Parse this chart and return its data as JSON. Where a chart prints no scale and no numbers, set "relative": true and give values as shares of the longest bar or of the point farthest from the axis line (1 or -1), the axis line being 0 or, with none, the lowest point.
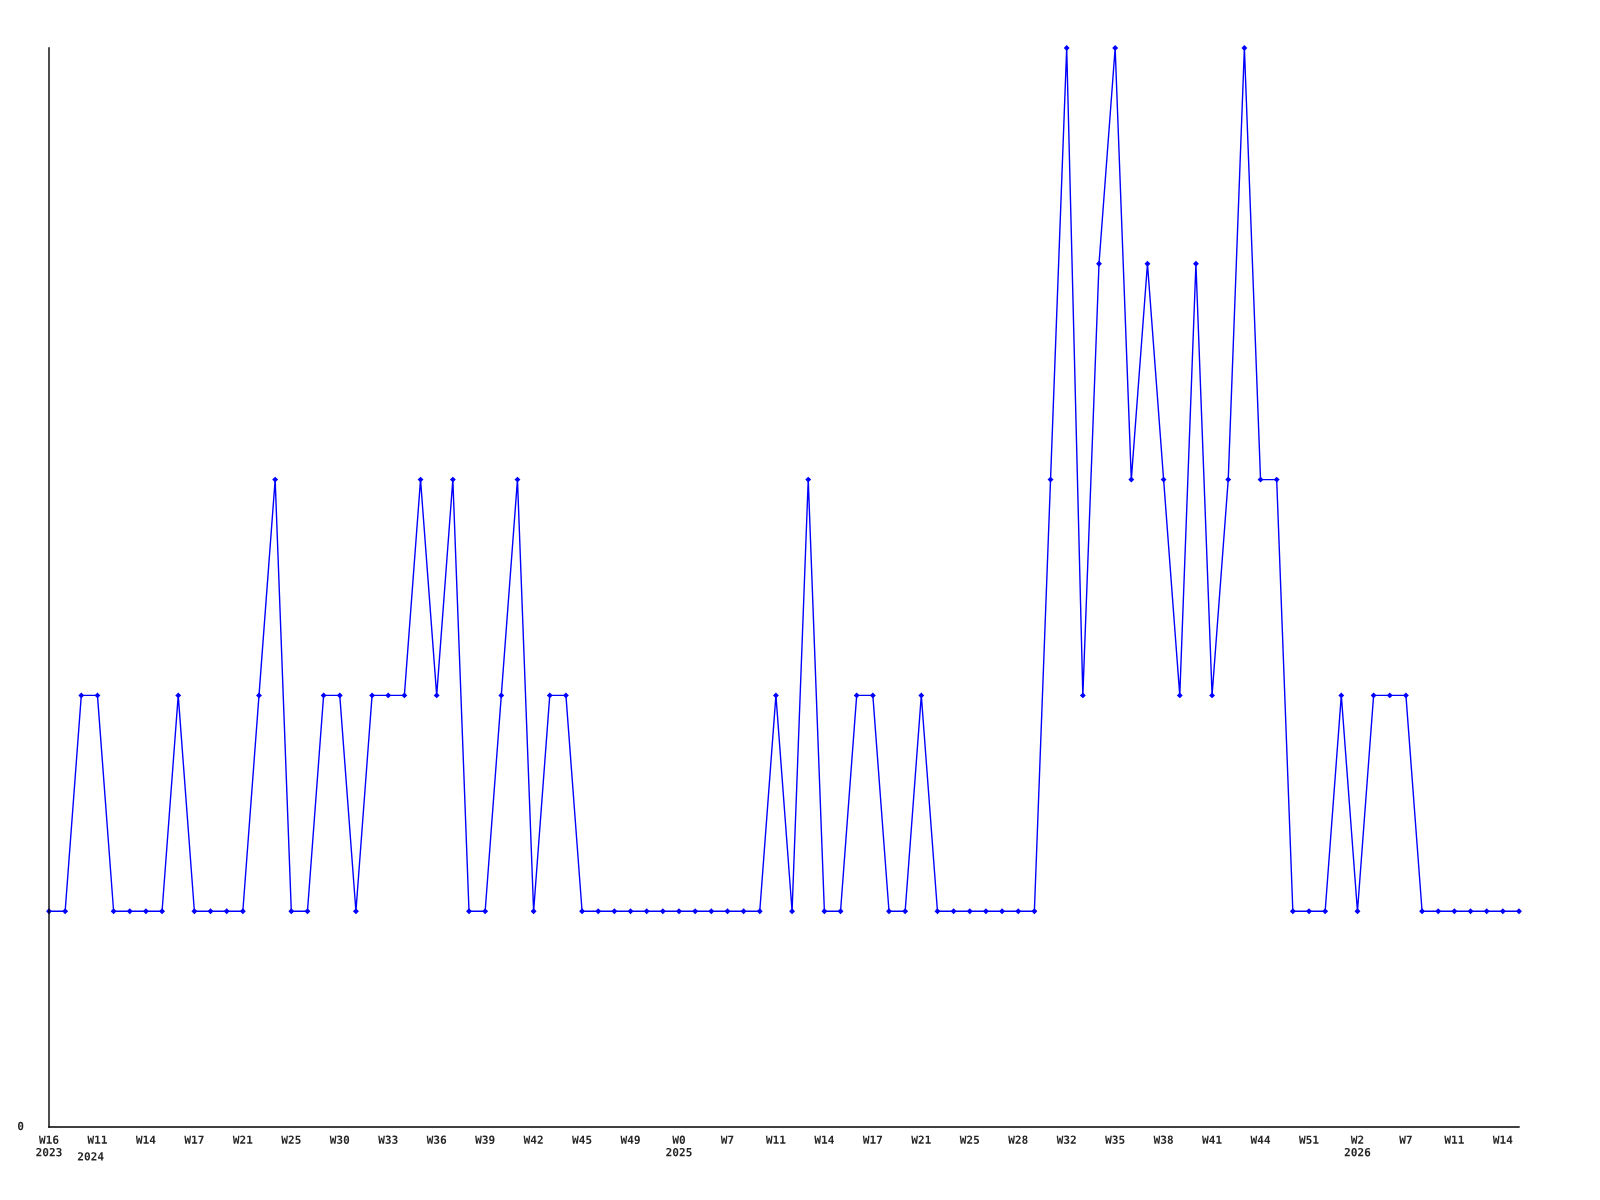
{
  "chart_data": {
    "type": "line",
    "relative": true,
    "marker": "diamond",
    "line_style": "solid",
    "grid": false,
    "categories": [
      "W16\n2023",
      null,
      null,
      "W11",
      null,
      null,
      "W14",
      null,
      null,
      "W17",
      null,
      null,
      "W21",
      null,
      null,
      "W25",
      null,
      null,
      "W30",
      null,
      null,
      "W33",
      null,
      null,
      "W36",
      null,
      null,
      "W39",
      null,
      null,
      "W42",
      null,
      null,
      "W45",
      null,
      null,
      "W49",
      null,
      null,
      "W0\n2025",
      null,
      null,
      "W7",
      null,
      null,
      "W11",
      null,
      null,
      "W14",
      null,
      null,
      "W17",
      null,
      null,
      "W21",
      null,
      null,
      "W25",
      null,
      null,
      "W28",
      null,
      null,
      "W32",
      null,
      null,
      "W35",
      null,
      null,
      "W38",
      null,
      null,
      "W41",
      null,
      null,
      "W44",
      null,
      null,
      "W51",
      null,
      null,
      "W2\n2026",
      null,
      null,
      "W7",
      null,
      null,
      "W11",
      null,
      null,
      "W14",
      null
    ],
    "series": [
      {
        "color": "#0000ff",
        "values": [
          0.2,
          0.2,
          0.4,
          0.4,
          0.2,
          0.2,
          0.2,
          0.2,
          0.4,
          0.2,
          0.2,
          0.2,
          0.2,
          0.4,
          0.6,
          0.2,
          0.2,
          0.4,
          0.4,
          0.2,
          0.4,
          0.4,
          0.4,
          0.6,
          0.4,
          0.6,
          0.2,
          0.2,
          0.4,
          0.6,
          0.2,
          0.4,
          0.4,
          0.2,
          0.2,
          0.2,
          0.2,
          0.2,
          0.2,
          0.2,
          0.2,
          0.2,
          0.2,
          0.2,
          0.2,
          0.4,
          0.2,
          0.6,
          0.2,
          0.2,
          0.4,
          0.4,
          0.2,
          0.2,
          0.4,
          0.2,
          0.2,
          0.2,
          0.2,
          0.2,
          0.2,
          0.2,
          0.6,
          1.0,
          0.4,
          0.8,
          1.0,
          0.6,
          0.8,
          0.6,
          0.4,
          0.8,
          0.4,
          0.6,
          1.0,
          0.6,
          0.6,
          0.2,
          0.2,
          0.2,
          0.4,
          0.2,
          0.4,
          0.4,
          0.4,
          0.2,
          0.2,
          0.2,
          0.2,
          0.2,
          0.2,
          0.2
        ]
      }
    ],
    "annotations": [
      "0",
      "2024"
    ]
  }
}
